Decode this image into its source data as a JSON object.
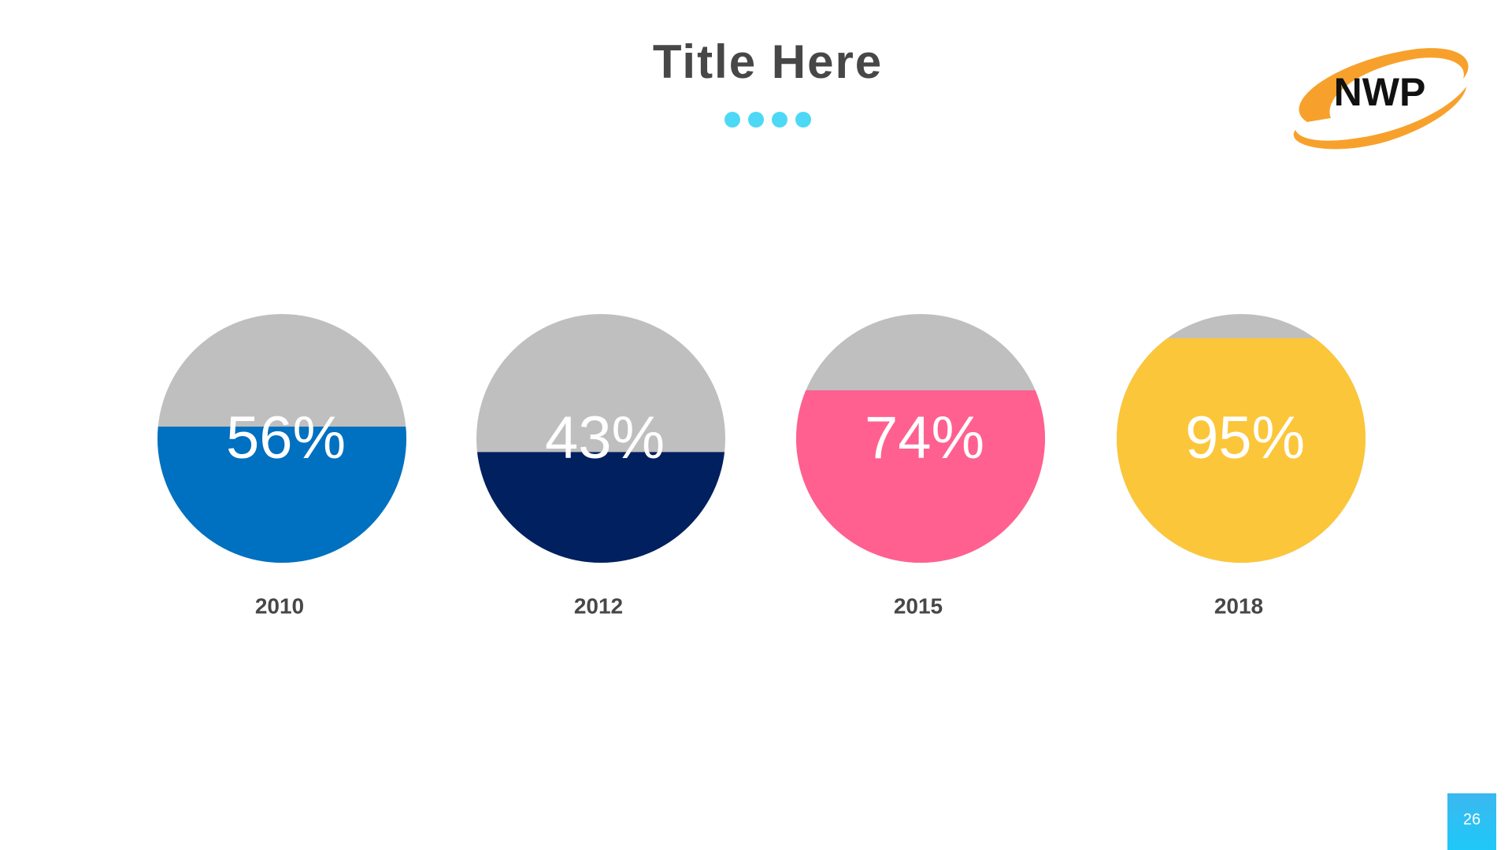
{
  "chart_data": {
    "type": "progress",
    "title": "Title Here",
    "categories": [
      "2010",
      "2012",
      "2015",
      "2018"
    ],
    "values": [
      56,
      43,
      74,
      95
    ],
    "value_labels": [
      "56%",
      "43%",
      "74%",
      "95%"
    ],
    "colors": [
      "#0070c0",
      "#002060",
      "#ff6090",
      "#fcc63a"
    ],
    "track_color": "#bfbfbf"
  },
  "logo": "NWP",
  "page_number": "26"
}
